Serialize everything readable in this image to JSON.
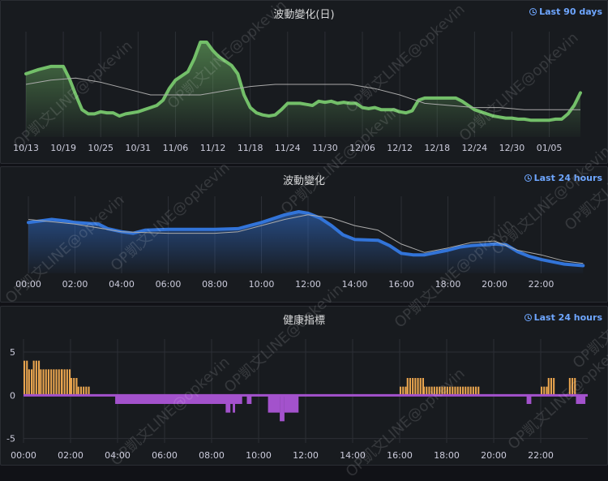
{
  "watermark": "OP凱文LINE@opkevin",
  "chart_data": [
    {
      "type": "area",
      "title": "波動變化(日)",
      "time_range": "Last 90 days",
      "x_tick_labels": [
        "10/13",
        "10/19",
        "10/25",
        "10/31",
        "11/06",
        "11/12",
        "11/18",
        "11/24",
        "11/30",
        "12/06",
        "12/12",
        "12/18",
        "12/24",
        "12/30",
        "01/05"
      ],
      "x_range_days": [
        0,
        89
      ],
      "y_range": [
        0,
        100
      ],
      "series": [
        {
          "color": "#73bf69",
          "style": "thick",
          "x": [
            0,
            2,
            4,
            6,
            7,
            8,
            9,
            10,
            11,
            12,
            13,
            14,
            15,
            16,
            17,
            18,
            19,
            20,
            21,
            22,
            23,
            24,
            25,
            26,
            27,
            28,
            29,
            30,
            31,
            32,
            33,
            34,
            35,
            36,
            37,
            38,
            39,
            40,
            41,
            42,
            43,
            44,
            45,
            46,
            47,
            48,
            49,
            50,
            51,
            52,
            53,
            54,
            55,
            56,
            57,
            58,
            59,
            60,
            61,
            62,
            63,
            64,
            65,
            66,
            67,
            68,
            69,
            70,
            71,
            72,
            73,
            74,
            75,
            76,
            77,
            78,
            79,
            80,
            81,
            82,
            83,
            84,
            85,
            86,
            87,
            88,
            89
          ],
          "y": [
            60,
            64,
            67,
            67,
            55,
            40,
            26,
            22,
            22,
            24,
            23,
            23,
            20,
            22,
            23,
            24,
            26,
            28,
            30,
            35,
            46,
            54,
            58,
            62,
            74,
            90,
            90,
            82,
            76,
            72,
            68,
            60,
            40,
            28,
            23,
            21,
            20,
            21,
            26,
            32,
            32,
            32,
            31,
            30,
            34,
            33,
            34,
            32,
            33,
            32,
            32,
            28,
            27,
            28,
            26,
            26,
            26,
            24,
            23,
            25,
            35,
            37,
            37,
            37,
            37,
            37,
            37,
            34,
            30,
            26,
            24,
            22,
            20,
            19,
            18,
            18,
            17,
            17,
            16,
            16,
            16,
            16,
            17,
            17,
            22,
            30,
            42
          ]
        },
        {
          "color": "#aaaaaa",
          "style": "thin",
          "x": [
            0,
            4,
            8,
            12,
            16,
            20,
            24,
            28,
            32,
            36,
            40,
            44,
            48,
            52,
            56,
            60,
            64,
            68,
            72,
            76,
            80,
            84,
            89
          ],
          "y": [
            50,
            54,
            56,
            52,
            46,
            40,
            40,
            40,
            44,
            48,
            50,
            50,
            50,
            50,
            46,
            40,
            32,
            30,
            28,
            28,
            26,
            26,
            26
          ]
        }
      ]
    },
    {
      "type": "area",
      "title": "波動變化",
      "time_range": "Last 24 hours",
      "x_tick_labels": [
        "00:00",
        "02:00",
        "04:00",
        "06:00",
        "08:00",
        "10:00",
        "12:00",
        "14:00",
        "16:00",
        "18:00",
        "20:00",
        "22:00"
      ],
      "x_range_hours": [
        0,
        24
      ],
      "y_range": [
        0,
        100
      ],
      "series": [
        {
          "color": "#3274d9",
          "style": "thick",
          "x": [
            0,
            1,
            1.6,
            2,
            3,
            3.4,
            4,
            4.5,
            5,
            6,
            7,
            8,
            9,
            9.5,
            10,
            11,
            11.6,
            12,
            12.5,
            13,
            13.5,
            14,
            15,
            15.5,
            16,
            16.5,
            17,
            18,
            18.5,
            19,
            20,
            20.5,
            21,
            21.5,
            22,
            22.5,
            23,
            23.8
          ],
          "y": [
            66,
            70,
            68,
            66,
            64,
            58,
            54,
            52,
            56,
            57,
            57,
            57,
            58,
            62,
            66,
            76,
            80,
            78,
            72,
            62,
            50,
            44,
            43,
            36,
            26,
            24,
            24,
            30,
            34,
            36,
            38,
            37,
            28,
            22,
            18,
            15,
            12,
            10
          ]
        },
        {
          "color": "#aaaaaa",
          "style": "thin",
          "x": [
            0,
            2,
            4,
            6,
            8,
            9,
            10,
            11,
            12,
            13,
            14,
            15,
            16,
            17,
            18,
            19,
            20,
            21,
            22,
            23,
            23.8
          ],
          "y": [
            70,
            64,
            54,
            52,
            52,
            54,
            62,
            70,
            76,
            72,
            62,
            56,
            38,
            27,
            33,
            40,
            42,
            30,
            24,
            16,
            13
          ]
        }
      ]
    },
    {
      "type": "bar",
      "title": "健康指標",
      "time_range": "Last 24 hours",
      "x_tick_labels": [
        "00:00",
        "02:00",
        "04:00",
        "06:00",
        "08:00",
        "10:00",
        "12:00",
        "14:00",
        "16:00",
        "18:00",
        "20:00",
        "22:00"
      ],
      "y_tick_labels": [
        "5",
        "0",
        "-5"
      ],
      "y_range": [
        -5.5,
        6.5
      ],
      "positive_color": "#e8a44e",
      "negative_color": "#a352cc",
      "positive_bars": [
        {
          "from": 0,
          "to": 0.2,
          "value": 4
        },
        {
          "from": 0.2,
          "to": 0.4,
          "value": 3
        },
        {
          "from": 0.4,
          "to": 0.7,
          "value": 4
        },
        {
          "from": 0.7,
          "to": 1.6,
          "value": 3
        },
        {
          "from": 1.6,
          "to": 2.0,
          "value": 3
        },
        {
          "from": 2.0,
          "to": 2.3,
          "value": 2
        },
        {
          "from": 2.3,
          "to": 2.8,
          "value": 1
        },
        {
          "from": 16.0,
          "to": 16.3,
          "value": 1
        },
        {
          "from": 16.3,
          "to": 17.0,
          "value": 2
        },
        {
          "from": 17.0,
          "to": 19.4,
          "value": 1
        },
        {
          "from": 22.0,
          "to": 22.3,
          "value": 1
        },
        {
          "from": 22.3,
          "to": 22.6,
          "value": 2
        },
        {
          "from": 23.2,
          "to": 23.5,
          "value": 2
        }
      ],
      "negative_bars": [
        {
          "from": 3.9,
          "to": 9.3,
          "value": -1
        },
        {
          "from": 8.6,
          "to": 8.8,
          "value": -2
        },
        {
          "from": 8.9,
          "to": 9.0,
          "value": -2
        },
        {
          "from": 9.5,
          "to": 9.7,
          "value": -1
        },
        {
          "from": 10.4,
          "to": 10.9,
          "value": -2
        },
        {
          "from": 10.9,
          "to": 11.1,
          "value": -3
        },
        {
          "from": 11.1,
          "to": 11.5,
          "value": -2
        },
        {
          "from": 11.5,
          "to": 11.7,
          "value": -2
        },
        {
          "from": 21.4,
          "to": 21.6,
          "value": -1
        },
        {
          "from": 23.5,
          "to": 23.9,
          "value": -1
        }
      ]
    }
  ]
}
